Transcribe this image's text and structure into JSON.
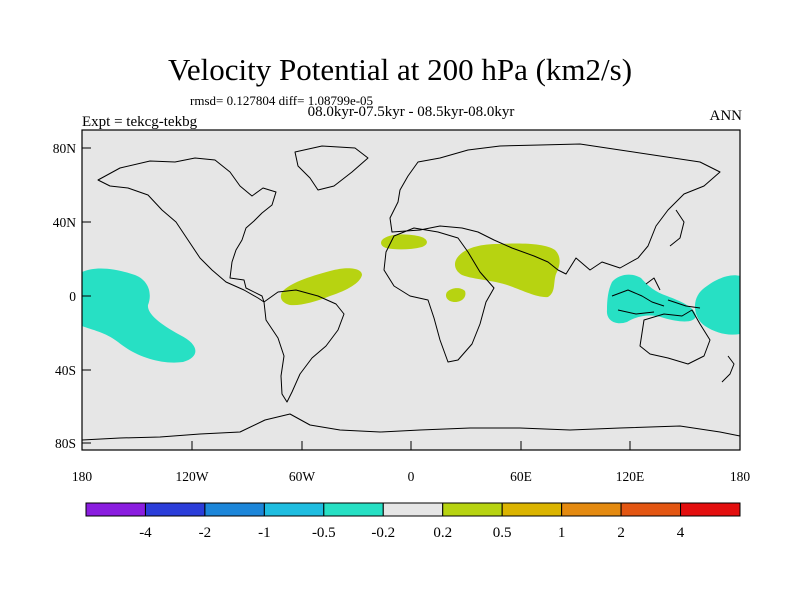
{
  "title": "Velocity Potential at 200 hPa (km2/s)",
  "stats": "rmsd= 0.127804 diff= 1.08799e-05",
  "period": "08.0kyr-07.5kyr - 08.5kyr-08.0kyr",
  "experiment": "Expt = tekcg-tekbg",
  "season": "ANN",
  "colors": {
    "background": "#e6e6e6",
    "positive_fill": "#b7d311",
    "negative_fill": "#27e0c4"
  },
  "axes": {
    "lat_ticks": [
      "80N",
      "40N",
      "0",
      "40S",
      "80S"
    ],
    "lon_ticks": [
      "180",
      "120W",
      "60W",
      "0",
      "60E",
      "120E",
      "180"
    ]
  },
  "colorbar": {
    "colors": [
      "#8a1ddf",
      "#2b3dd9",
      "#1c86d9",
      "#1fbde0",
      "#27e0c4",
      "#e6e6e6",
      "#b7d311",
      "#dbb400",
      "#e48a10",
      "#e35612",
      "#e30e0e"
    ],
    "labels": [
      "-4",
      "-2",
      "-1",
      "-0.5",
      "-0.2",
      "0.2",
      "0.5",
      "1",
      "2",
      "4"
    ]
  }
}
